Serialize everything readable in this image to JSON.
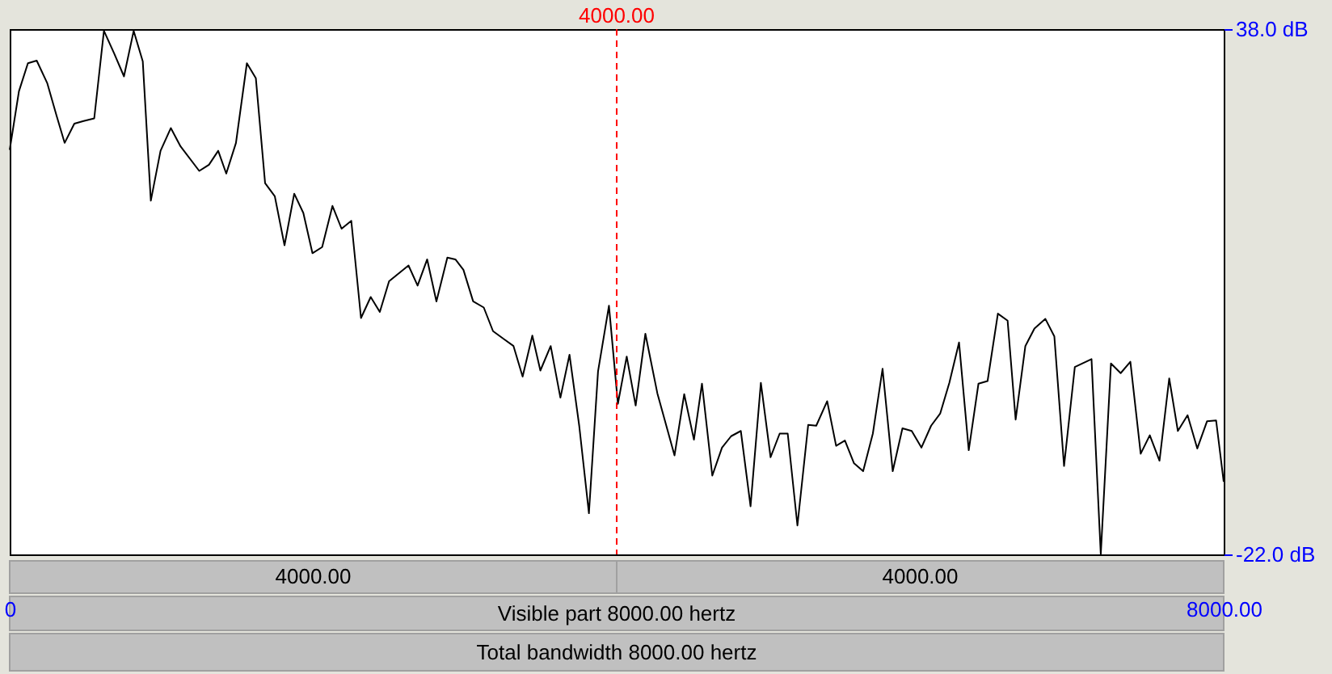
{
  "chart_data": {
    "type": "line",
    "x": [
      0,
      61,
      120,
      178,
      248,
      309,
      362,
      426,
      487,
      557,
      621,
      689,
      753,
      817,
      877,
      930,
      994,
      1062,
      1126,
      1249,
      1313,
      1374,
      1427,
      1491,
      1563,
      1622,
      1683,
      1747,
      1811,
      1875,
      1935,
      1995,
      2059,
      2127,
      2187,
      2251,
      2315,
      2379,
      2439,
      2500,
      2628,
      2688,
      2751,
      2812,
      2884,
      2937,
      2990,
      3054,
      3124,
      3185,
      3256,
      3320,
      3380,
      3444,
      3497,
      3565,
      3629,
      3689,
      3753,
      3817,
      3877,
      3949,
      4008,
      4066,
      4125,
      4189,
      4268,
      4381,
      4445,
      4509,
      4562,
      4630,
      4694,
      4754,
      4818,
      4882,
      4950,
      5014,
      5074,
      5127,
      5191,
      5262,
      5315,
      5387,
      5446,
      5504,
      5564,
      5624,
      5688,
      5752,
      5819,
      5883,
      5944,
      6008,
      6072,
      6132,
      6192,
      6256,
      6320,
      6384,
      6444,
      6512,
      6576,
      6629,
      6693,
      6753,
      6825,
      6884,
      6948,
      7019,
      7129,
      7190,
      7257,
      7321,
      7385,
      7453,
      7513,
      7577,
      7641,
      7698,
      7762,
      7826,
      7890,
      7950,
      8000
    ],
    "series": [
      {
        "color": "#000000",
        "values": [
          24.2,
          30.9,
          34.1,
          34.4,
          31.8,
          28.1,
          25.0,
          27.2,
          27.5,
          27.8,
          37.8,
          35.2,
          32.6,
          37.8,
          34.3,
          18.4,
          24.1,
          26.7,
          24.6,
          21.8,
          22.5,
          24.1,
          21.5,
          25.0,
          34.1,
          32.4,
          20.4,
          18.9,
          13.3,
          19.2,
          17.0,
          12.4,
          13.1,
          17.8,
          15.2,
          16.1,
          5.0,
          7.4,
          5.7,
          9.2,
          11.0,
          8.7,
          11.7,
          6.9,
          11.9,
          11.7,
          10.5,
          6.9,
          6.2,
          3.5,
          2.6,
          1.8,
          -1.7,
          3.0,
          -1.0,
          1.8,
          -4.1,
          0.8,
          -7.3,
          -17.3,
          -1.1,
          6.4,
          -4.8,
          0.6,
          -5.0,
          3.2,
          -3.6,
          -10.7,
          -3.7,
          -8.9,
          -2.5,
          -13.0,
          -9.8,
          -8.5,
          -7.9,
          -16.5,
          -2.4,
          -10.9,
          -8.2,
          -8.2,
          -18.7,
          -7.2,
          -7.3,
          -4.5,
          -9.6,
          -9.0,
          -11.6,
          -12.5,
          -8.2,
          -0.8,
          -12.5,
          -7.6,
          -7.9,
          -9.8,
          -7.3,
          -5.9,
          -2.4,
          2.2,
          -10.1,
          -2.5,
          -2.2,
          5.5,
          4.7,
          -6.6,
          1.8,
          3.8,
          4.9,
          2.9,
          -11.9,
          -0.6,
          0.3,
          -22.0,
          -0.2,
          -1.3,
          0.0,
          -10.5,
          -8.4,
          -11.3,
          -1.9,
          -7.9,
          -6.1,
          -9.9,
          -6.8,
          -6.7,
          -13.7
        ]
      }
    ],
    "xlim": [
      0,
      8000
    ],
    "xticks": [
      {
        "value": 0,
        "label": "0"
      },
      {
        "value": 8000,
        "label": "8000.00"
      }
    ],
    "ylim": [
      -22,
      38
    ],
    "yticks": [
      {
        "value": 38,
        "label": "38.0 dB"
      },
      {
        "value": -22,
        "label": "-22.0 dB"
      }
    ],
    "ref_lines": [
      {
        "axis": "x",
        "value": 4000,
        "label": "4000.00",
        "color": "#ff0000",
        "line_style": "dashed"
      }
    ],
    "annotations": [
      "4000.00",
      "4000.00",
      "Visible part 8000.00 hertz",
      "Total bandwidth 8000.00 hertz"
    ],
    "grid": false,
    "legend": false
  }
}
